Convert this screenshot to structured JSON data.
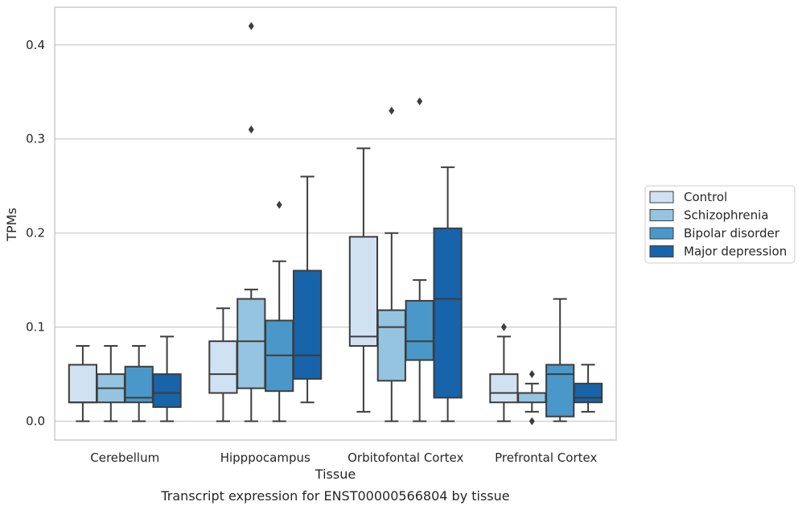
{
  "chart_data": {
    "type": "box",
    "categories": [
      "Cerebellum",
      "Hipppocampus",
      "Orbitofontal Cortex",
      "Prefrontal Cortex"
    ],
    "xlabel": "Tissue",
    "ylabel": "TPMs",
    "caption": "Transcript expression for ENST00000566804 by tissue",
    "ylim": [
      -0.02,
      0.44
    ],
    "yticks": [
      0.0,
      0.1,
      0.2,
      0.3,
      0.4
    ],
    "ytick_labels": [
      "0.0",
      "0.1",
      "0.2",
      "0.3",
      "0.4"
    ],
    "grid": "horizontal",
    "legend_position": "right",
    "series": [
      {
        "name": "Control",
        "color": "#d0e1f2",
        "boxes": [
          {
            "whislo": 0.0,
            "q1": 0.02,
            "med": 0.02,
            "q3": 0.06,
            "whishi": 0.08,
            "fliers": []
          },
          {
            "whislo": 0.0,
            "q1": 0.03,
            "med": 0.05,
            "q3": 0.085,
            "whishi": 0.12,
            "fliers": []
          },
          {
            "whislo": 0.01,
            "q1": 0.08,
            "med": 0.09,
            "q3": 0.196,
            "whishi": 0.29,
            "fliers": []
          },
          {
            "whislo": 0.0,
            "q1": 0.02,
            "med": 0.03,
            "q3": 0.05,
            "whishi": 0.09,
            "fliers": [
              0.1
            ]
          }
        ]
      },
      {
        "name": "Schizophrenia",
        "color": "#94c4df",
        "boxes": [
          {
            "whislo": 0.0,
            "q1": 0.02,
            "med": 0.035,
            "q3": 0.05,
            "whishi": 0.08,
            "fliers": []
          },
          {
            "whislo": 0.0,
            "q1": 0.035,
            "med": 0.085,
            "q3": 0.13,
            "whishi": 0.14,
            "fliers": [
              0.31,
              0.42
            ]
          },
          {
            "whislo": 0.0,
            "q1": 0.043,
            "med": 0.1,
            "q3": 0.118,
            "whishi": 0.2,
            "fliers": [
              0.33
            ]
          },
          {
            "whislo": 0.01,
            "q1": 0.02,
            "med": 0.03,
            "q3": 0.03,
            "whishi": 0.04,
            "fliers": [
              0.0,
              0.05
            ]
          }
        ]
      },
      {
        "name": "Bipolar disorder",
        "color": "#4a98c9",
        "boxes": [
          {
            "whislo": 0.0,
            "q1": 0.02,
            "med": 0.025,
            "q3": 0.058,
            "whishi": 0.08,
            "fliers": []
          },
          {
            "whislo": 0.0,
            "q1": 0.032,
            "med": 0.07,
            "q3": 0.107,
            "whishi": 0.17,
            "fliers": [
              0.23
            ]
          },
          {
            "whislo": 0.0,
            "q1": 0.065,
            "med": 0.085,
            "q3": 0.128,
            "whishi": 0.15,
            "fliers": [
              0.34
            ]
          },
          {
            "whislo": 0.0,
            "q1": 0.005,
            "med": 0.05,
            "q3": 0.06,
            "whishi": 0.13,
            "fliers": []
          }
        ]
      },
      {
        "name": "Major depression",
        "color": "#1764ab",
        "boxes": [
          {
            "whislo": 0.0,
            "q1": 0.015,
            "med": 0.03,
            "q3": 0.05,
            "whishi": 0.09,
            "fliers": []
          },
          {
            "whislo": 0.02,
            "q1": 0.045,
            "med": 0.07,
            "q3": 0.16,
            "whishi": 0.26,
            "fliers": []
          },
          {
            "whislo": 0.0,
            "q1": 0.025,
            "med": 0.13,
            "q3": 0.205,
            "whishi": 0.27,
            "fliers": []
          },
          {
            "whislo": 0.01,
            "q1": 0.02,
            "med": 0.025,
            "q3": 0.04,
            "whishi": 0.06,
            "fliers": []
          }
        ]
      }
    ]
  }
}
